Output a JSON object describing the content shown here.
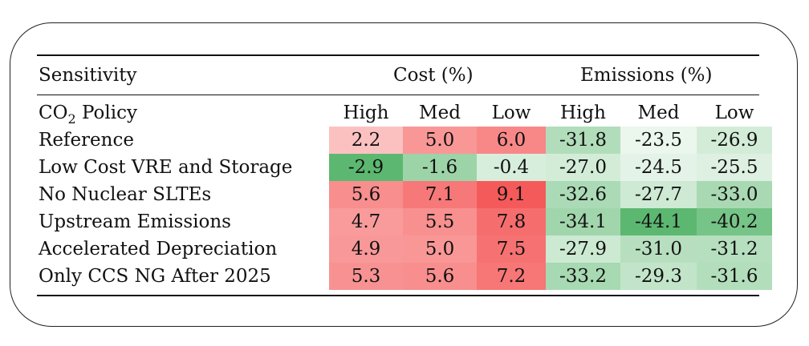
{
  "table": {
    "header": {
      "sensitivity": "Sensitivity",
      "cost_group": "Cost (%)",
      "emissions_group": "Emissions (%)"
    },
    "subheader": {
      "policy_prefix": "CO",
      "policy_subscript": "2",
      "policy_suffix": " Policy",
      "columns": [
        "High",
        "Med",
        "Low",
        "High",
        "Med",
        "Low"
      ]
    },
    "rows": [
      {
        "label": "Reference",
        "cost": [
          "2.2",
          "5.0",
          "6.0"
        ],
        "emissions": [
          "-31.8",
          "-23.5",
          "-26.9"
        ]
      },
      {
        "label": "Low Cost VRE and Storage",
        "cost": [
          "-2.9",
          "-1.6",
          "-0.4"
        ],
        "emissions": [
          "-27.0",
          "-24.5",
          "-25.5"
        ]
      },
      {
        "label": "No Nuclear SLTEs",
        "cost": [
          "5.6",
          "7.1",
          "9.1"
        ],
        "emissions": [
          "-32.6",
          "-27.7",
          "-33.0"
        ]
      },
      {
        "label": "Upstream Emissions",
        "cost": [
          "4.7",
          "5.5",
          "7.8"
        ],
        "emissions": [
          "-34.1",
          "-44.1",
          "-40.2"
        ]
      },
      {
        "label": "Accelerated Depreciation",
        "cost": [
          "4.9",
          "5.0",
          "7.5"
        ],
        "emissions": [
          "-27.9",
          "-31.0",
          "-31.2"
        ]
      },
      {
        "label": "Only CCS NG After 2025",
        "cost": [
          "5.3",
          "5.6",
          "7.2"
        ],
        "emissions": [
          "-33.2",
          "-29.3",
          "-31.6"
        ]
      }
    ],
    "colors": {
      "positive": "#f55a5a",
      "negative": "#5cb870"
    }
  }
}
